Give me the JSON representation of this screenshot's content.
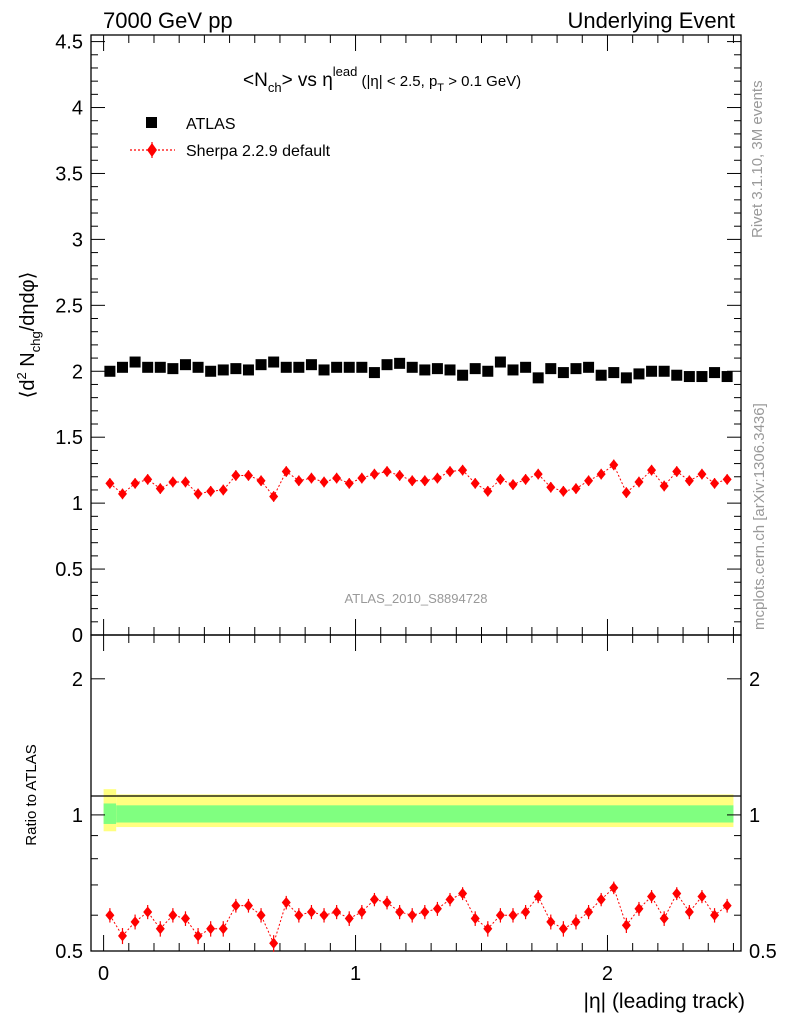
{
  "header": {
    "left": "7000 GeV pp",
    "right": "Underlying Event",
    "rivet": "Rivet 3.1.10,  3M events",
    "mcplots": "mcplots.cern.ch [arXiv:1306.3436]"
  },
  "legend": {
    "atlas": "ATLAS",
    "sherpa": "Sherpa 2.2.9 default"
  },
  "colors": {
    "atlas": "#000000",
    "sherpa": "#ff0000",
    "band_outer": "#ffff80",
    "band_inner": "#80ff80"
  },
  "chart_data": [
    {
      "type": "scatter",
      "panel": "main",
      "title": "<N_ch> vs η^lead (|η| < 2.5, p_T > 0.1 GeV)",
      "title_parts": {
        "a": "<N",
        "a_sub": "ch",
        "b": "> vs η",
        "b_sup": "lead",
        "c": " (|η| < 2.5, p",
        "c_sub": "T",
        "d": " > 0.1 GeV)"
      },
      "ylabel": "⟨d² N_chg/dηdφ⟩",
      "ylabel_parts": {
        "a": "⟨d",
        "a_sup": "2",
        "b": " N",
        "b_sub": "chg",
        "c": "/dηdφ⟩"
      },
      "ylim": [
        0,
        4.55
      ],
      "yticks": [
        0,
        0.5,
        1,
        1.5,
        2,
        2.5,
        3,
        3.5,
        4,
        4.5
      ],
      "ytick_labels": [
        "0",
        "0.5",
        "1",
        "1.5",
        "2",
        "2.5",
        "3",
        "3.5",
        "4",
        "4.5"
      ],
      "watermark": "ATLAS_2010_S8894728",
      "x": [
        0.025,
        0.075,
        0.125,
        0.175,
        0.225,
        0.275,
        0.325,
        0.375,
        0.425,
        0.475,
        0.525,
        0.575,
        0.625,
        0.675,
        0.725,
        0.775,
        0.825,
        0.875,
        0.925,
        0.975,
        1.025,
        1.075,
        1.125,
        1.175,
        1.225,
        1.275,
        1.325,
        1.375,
        1.425,
        1.475,
        1.525,
        1.575,
        1.625,
        1.675,
        1.725,
        1.775,
        1.825,
        1.875,
        1.925,
        1.975,
        2.025,
        2.075,
        2.125,
        2.175,
        2.225,
        2.275,
        2.325,
        2.375,
        2.425,
        2.475
      ],
      "series": [
        {
          "name": "ATLAS",
          "marker": "square",
          "values": [
            2.0,
            2.03,
            2.07,
            2.03,
            2.03,
            2.02,
            2.05,
            2.03,
            2.0,
            2.01,
            2.02,
            2.01,
            2.05,
            2.07,
            2.03,
            2.03,
            2.05,
            2.01,
            2.03,
            2.03,
            2.03,
            1.99,
            2.05,
            2.06,
            2.03,
            2.01,
            2.02,
            2.01,
            1.97,
            2.02,
            2.0,
            2.07,
            2.01,
            2.03,
            1.95,
            2.02,
            1.99,
            2.02,
            2.03,
            1.97,
            1.99,
            1.95,
            1.98,
            2.0,
            2.0,
            1.97,
            1.96,
            1.96,
            1.99,
            1.96
          ]
        },
        {
          "name": "Sherpa 2.2.9 default",
          "marker": "diamond",
          "values": [
            1.15,
            1.07,
            1.15,
            1.18,
            1.11,
            1.16,
            1.16,
            1.07,
            1.09,
            1.1,
            1.21,
            1.21,
            1.17,
            1.05,
            1.24,
            1.17,
            1.19,
            1.16,
            1.19,
            1.15,
            1.19,
            1.22,
            1.24,
            1.21,
            1.17,
            1.17,
            1.19,
            1.24,
            1.25,
            1.15,
            1.09,
            1.18,
            1.14,
            1.18,
            1.22,
            1.12,
            1.09,
            1.11,
            1.17,
            1.22,
            1.29,
            1.08,
            1.16,
            1.25,
            1.13,
            1.24,
            1.17,
            1.22,
            1.15,
            1.18
          ],
          "errors": [
            0.04,
            0.04,
            0.04,
            0.04,
            0.04,
            0.04,
            0.04,
            0.04,
            0.04,
            0.04,
            0.04,
            0.04,
            0.04,
            0.04,
            0.04,
            0.04,
            0.04,
            0.04,
            0.04,
            0.04,
            0.04,
            0.04,
            0.04,
            0.04,
            0.04,
            0.04,
            0.04,
            0.04,
            0.04,
            0.04,
            0.04,
            0.04,
            0.04,
            0.04,
            0.04,
            0.04,
            0.04,
            0.04,
            0.04,
            0.04,
            0.04,
            0.04,
            0.04,
            0.04,
            0.04,
            0.04,
            0.04,
            0.04,
            0.04,
            0.04
          ]
        }
      ]
    },
    {
      "type": "scatter",
      "panel": "ratio",
      "ylabel": "Ratio to ATLAS",
      "xlabel": "|η| (leading track)",
      "ylim": [
        0.5,
        2.5
      ],
      "log_y": true,
      "yticks": [
        0.5,
        1,
        2
      ],
      "ytick_labels": [
        "0.5",
        "1",
        "2"
      ],
      "xlim": [
        -0.05,
        2.53
      ],
      "xticks": [
        0,
        1,
        2
      ],
      "xtick_labels": [
        "0",
        "1",
        "2"
      ],
      "band": {
        "x_edges": [
          0.0,
          0.05,
          2.5
        ],
        "outer": [
          [
            0.92,
            1.14
          ],
          [
            0.94,
            1.11
          ]
        ],
        "inner": [
          [
            0.955,
            1.06
          ],
          [
            0.962,
            1.05
          ]
        ]
      },
      "ratio_values": [
        0.6,
        0.54,
        0.58,
        0.61,
        0.56,
        0.6,
        0.59,
        0.54,
        0.56,
        0.56,
        0.63,
        0.63,
        0.6,
        0.52,
        0.64,
        0.6,
        0.61,
        0.6,
        0.61,
        0.59,
        0.61,
        0.65,
        0.64,
        0.61,
        0.6,
        0.61,
        0.62,
        0.65,
        0.67,
        0.59,
        0.56,
        0.6,
        0.6,
        0.61,
        0.66,
        0.58,
        0.56,
        0.58,
        0.61,
        0.65,
        0.69,
        0.57,
        0.62,
        0.66,
        0.59,
        0.67,
        0.61,
        0.66,
        0.6,
        0.63
      ],
      "ratio_error": 0.022
    }
  ]
}
